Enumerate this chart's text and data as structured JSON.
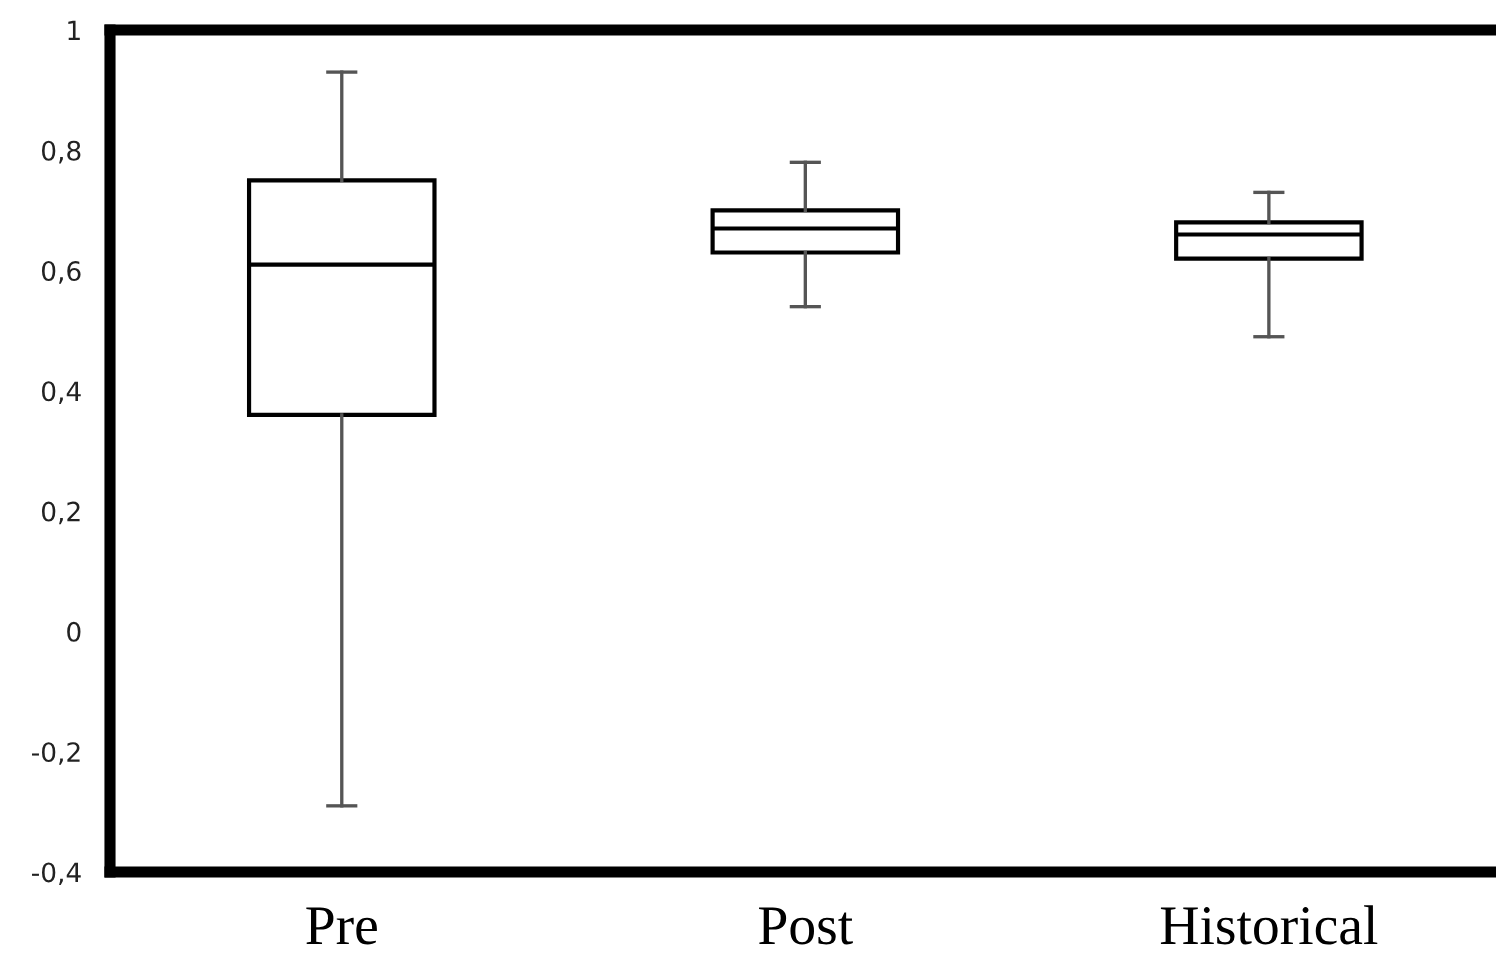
{
  "chart_data": {
    "type": "box",
    "categories": [
      "Pre",
      "Post",
      "Historical"
    ],
    "boxes": [
      {
        "low": -0.29,
        "q1": 0.36,
        "median": 0.61,
        "q3": 0.75,
        "high": 0.93
      },
      {
        "low": 0.54,
        "q1": 0.63,
        "median": 0.67,
        "q3": 0.7,
        "high": 0.78
      },
      {
        "low": 0.49,
        "q1": 0.62,
        "median": 0.66,
        "q3": 0.68,
        "high": 0.73
      }
    ],
    "ylim": [
      -0.4,
      1
    ],
    "yticks": [
      {
        "value": -0.4,
        "label": "-0,4"
      },
      {
        "value": -0.2,
        "label": "-0,2"
      },
      0,
      {
        "value": 0.2,
        "label": "0,2"
      },
      {
        "value": 0.4,
        "label": "0,4"
      },
      {
        "value": 0.6,
        "label": "0,6"
      },
      {
        "value": 0.8,
        "label": "0,8"
      },
      1
    ],
    "grid": false
  }
}
